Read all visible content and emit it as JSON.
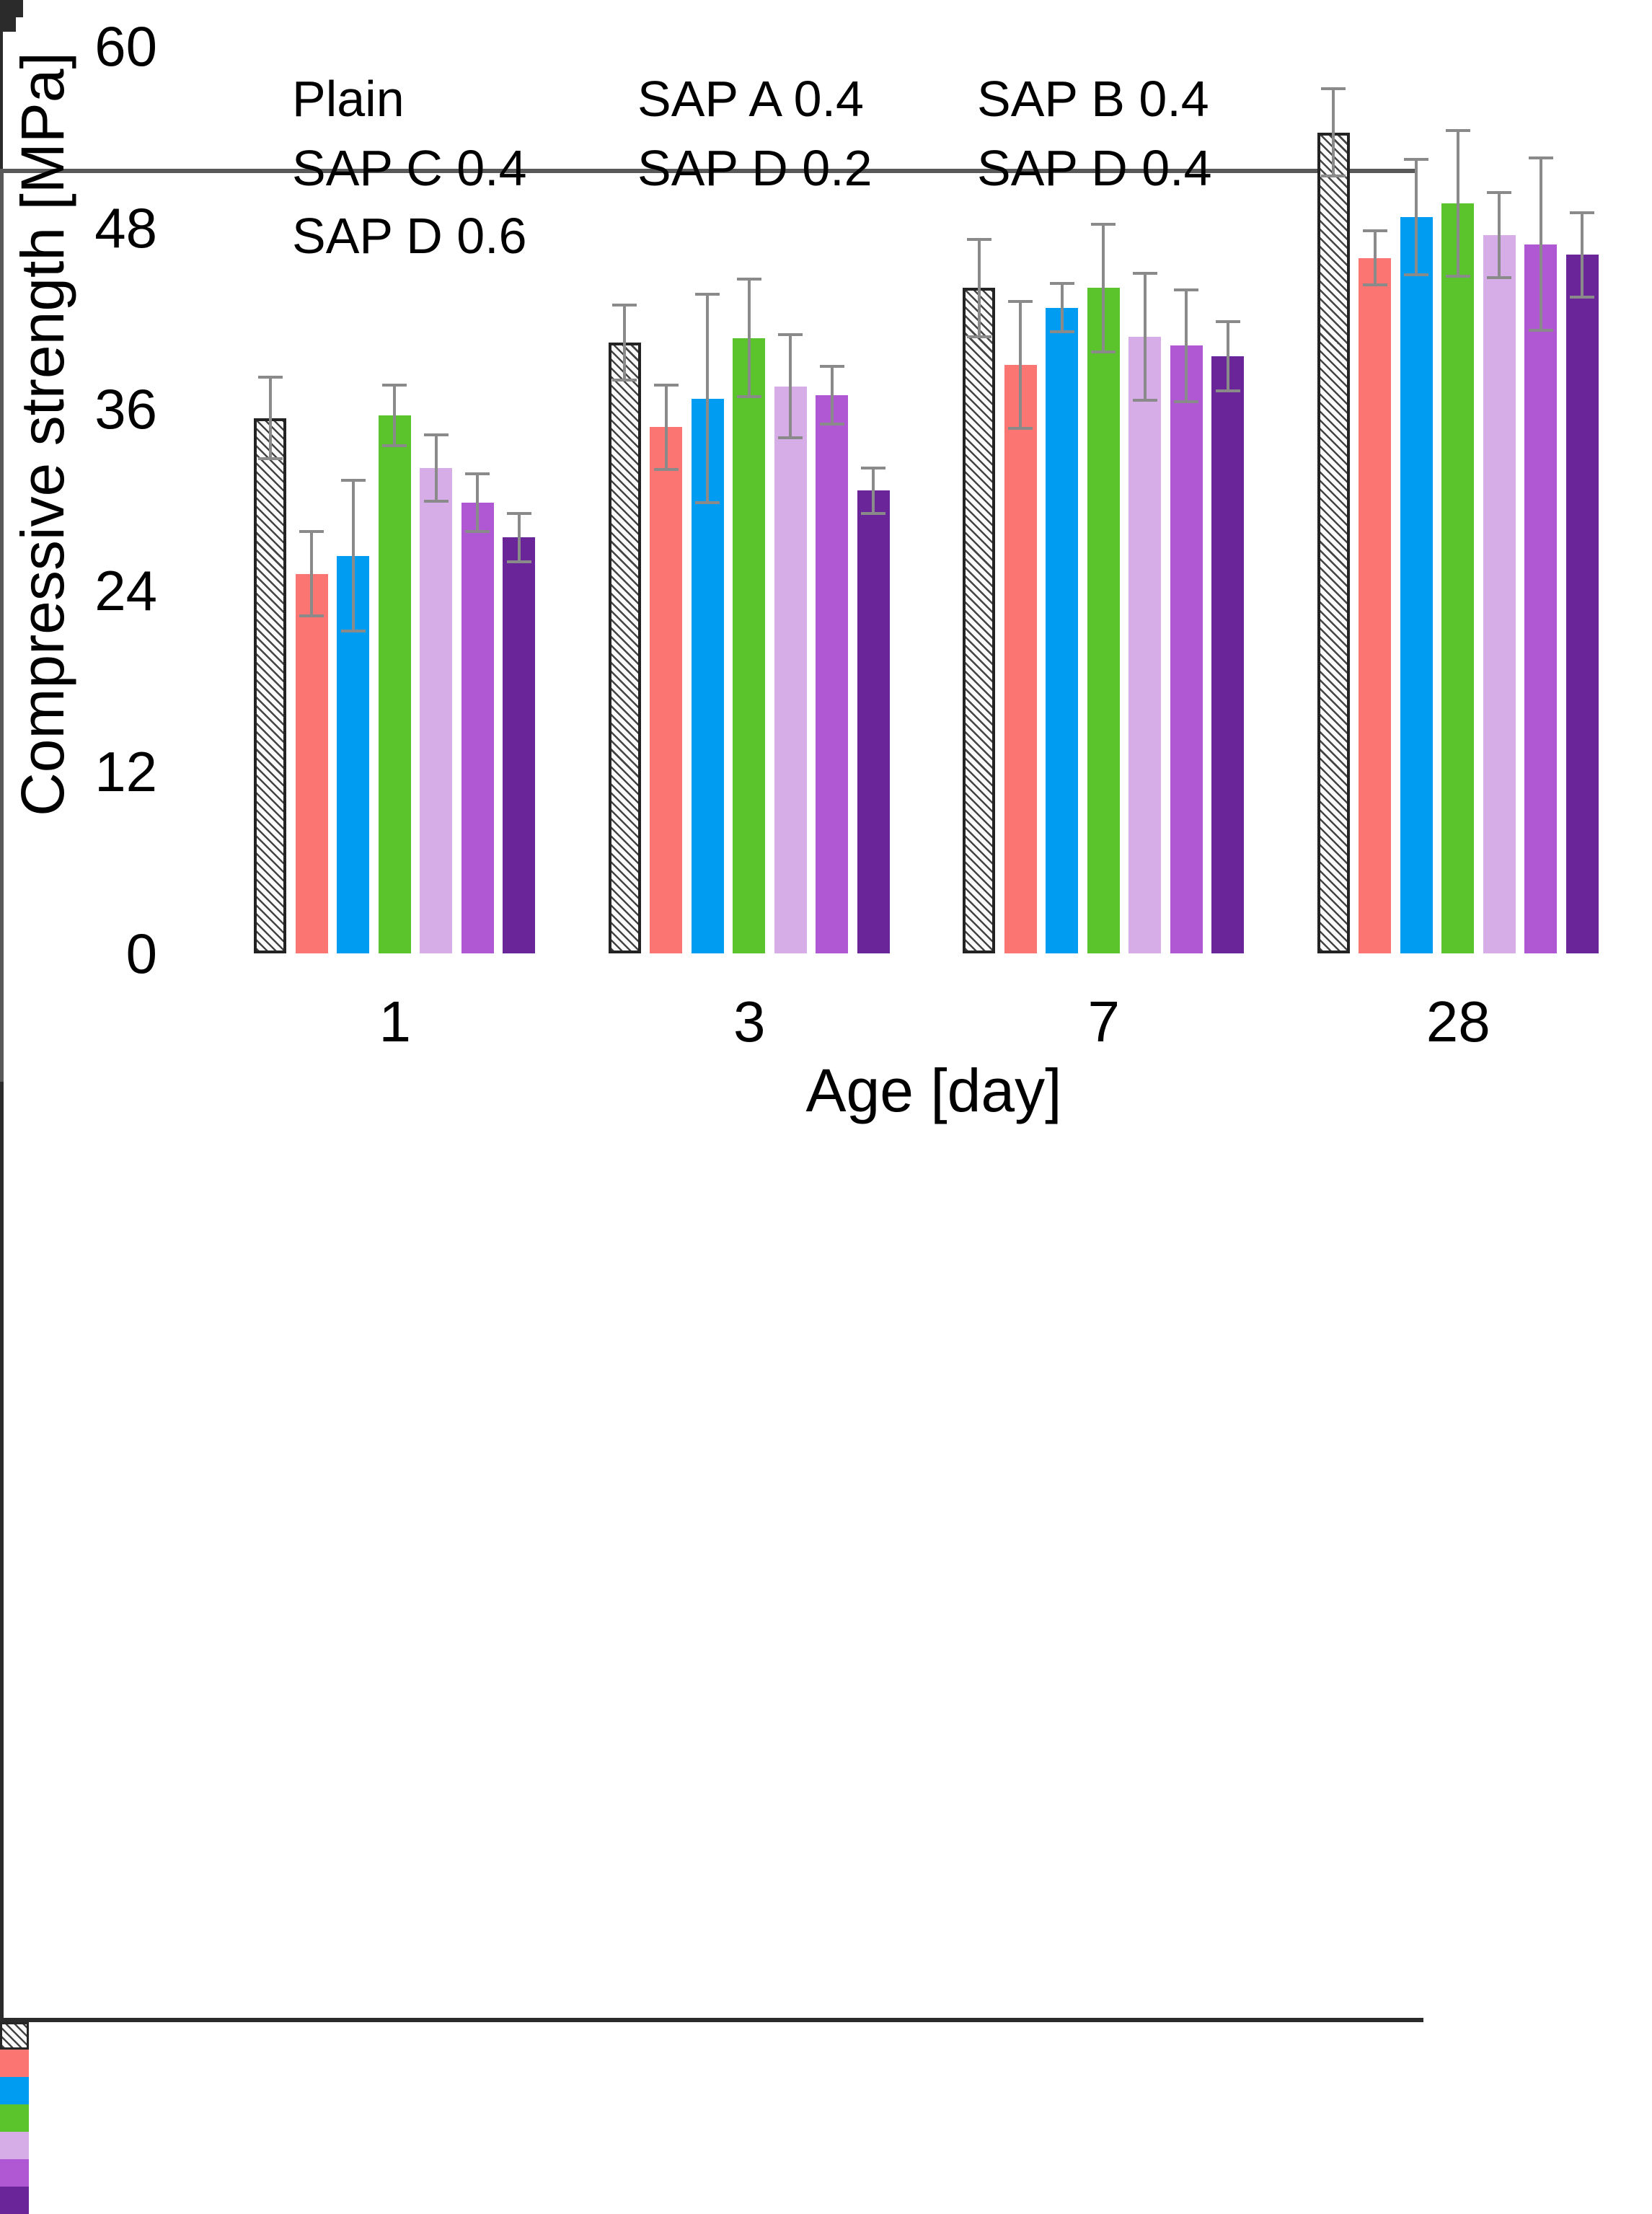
{
  "figure": {
    "background": "#FFFFFF"
  },
  "y_axis": {
    "title": "Compressive strength [MPa]",
    "min": 0,
    "max": 60,
    "major_ticks": [
      0,
      12,
      24,
      36,
      48,
      60
    ],
    "minor_ticks": [
      6,
      18,
      30,
      42,
      54
    ],
    "tick_labels": [
      "0",
      "12",
      "24",
      "36",
      "48",
      "60"
    ]
  },
  "x_axis": {
    "title": "Age [day]",
    "tick_labels": [
      "1",
      "3",
      "7",
      "28"
    ]
  },
  "legend": {
    "position": "top-left-inside",
    "columns": 3,
    "items": [
      "Plain",
      "SAP A 0.4",
      "SAP B 0.4",
      "SAP C 0.4",
      "SAP D 0.2",
      "SAP D 0.4",
      "SAP D 0.6"
    ]
  },
  "chart_data": {
    "type": "bar",
    "title": "",
    "xlabel": "Age [day]",
    "ylabel": "Compressive strength [MPa]",
    "categories": [
      "1",
      "3",
      "7",
      "28"
    ],
    "ylim": [
      0,
      60
    ],
    "grid": false,
    "error_bars": true,
    "error_bar_color": "#8A8A8A",
    "axis_color": "#2B2B2B",
    "border_color": "#595959",
    "legend_position": "top-left-inside",
    "series": [
      {
        "name": "Plain",
        "style": "hatched",
        "color": "#3A3A3A",
        "fill": "#FFFFFF",
        "values": [
          35.4,
          40.4,
          44.0,
          54.3
        ],
        "errors": [
          2.7,
          2.5,
          3.2,
          2.9
        ]
      },
      {
        "name": "SAP A 0.4",
        "style": "solid",
        "color": "#FB7673",
        "values": [
          25.1,
          34.8,
          38.9,
          46.0
        ],
        "errors": [
          2.8,
          2.8,
          4.2,
          1.8
        ]
      },
      {
        "name": "SAP B 0.4",
        "style": "solid",
        "color": "#009CF2",
        "values": [
          26.3,
          36.7,
          42.7,
          48.7
        ],
        "errors": [
          5.0,
          6.9,
          1.6,
          3.8
        ]
      },
      {
        "name": "SAP C 0.4",
        "style": "solid",
        "color": "#5BC42D",
        "values": [
          35.6,
          40.7,
          44.0,
          49.6
        ],
        "errors": [
          2.0,
          3.9,
          4.2,
          4.8
        ]
      },
      {
        "name": "SAP D 0.2",
        "style": "solid",
        "color": "#D6ADE6",
        "values": [
          32.1,
          37.5,
          40.8,
          47.5
        ],
        "errors": [
          2.2,
          3.4,
          4.2,
          2.8
        ]
      },
      {
        "name": "SAP D 0.4",
        "style": "solid",
        "color": "#B058D3",
        "values": [
          29.8,
          36.9,
          40.2,
          46.9
        ],
        "errors": [
          1.9,
          1.9,
          3.7,
          5.7
        ]
      },
      {
        "name": "SAP D 0.6",
        "style": "solid",
        "color": "#6A2598",
        "values": [
          27.5,
          30.6,
          39.5,
          46.2
        ],
        "errors": [
          1.6,
          1.5,
          2.3,
          2.8
        ]
      }
    ]
  }
}
